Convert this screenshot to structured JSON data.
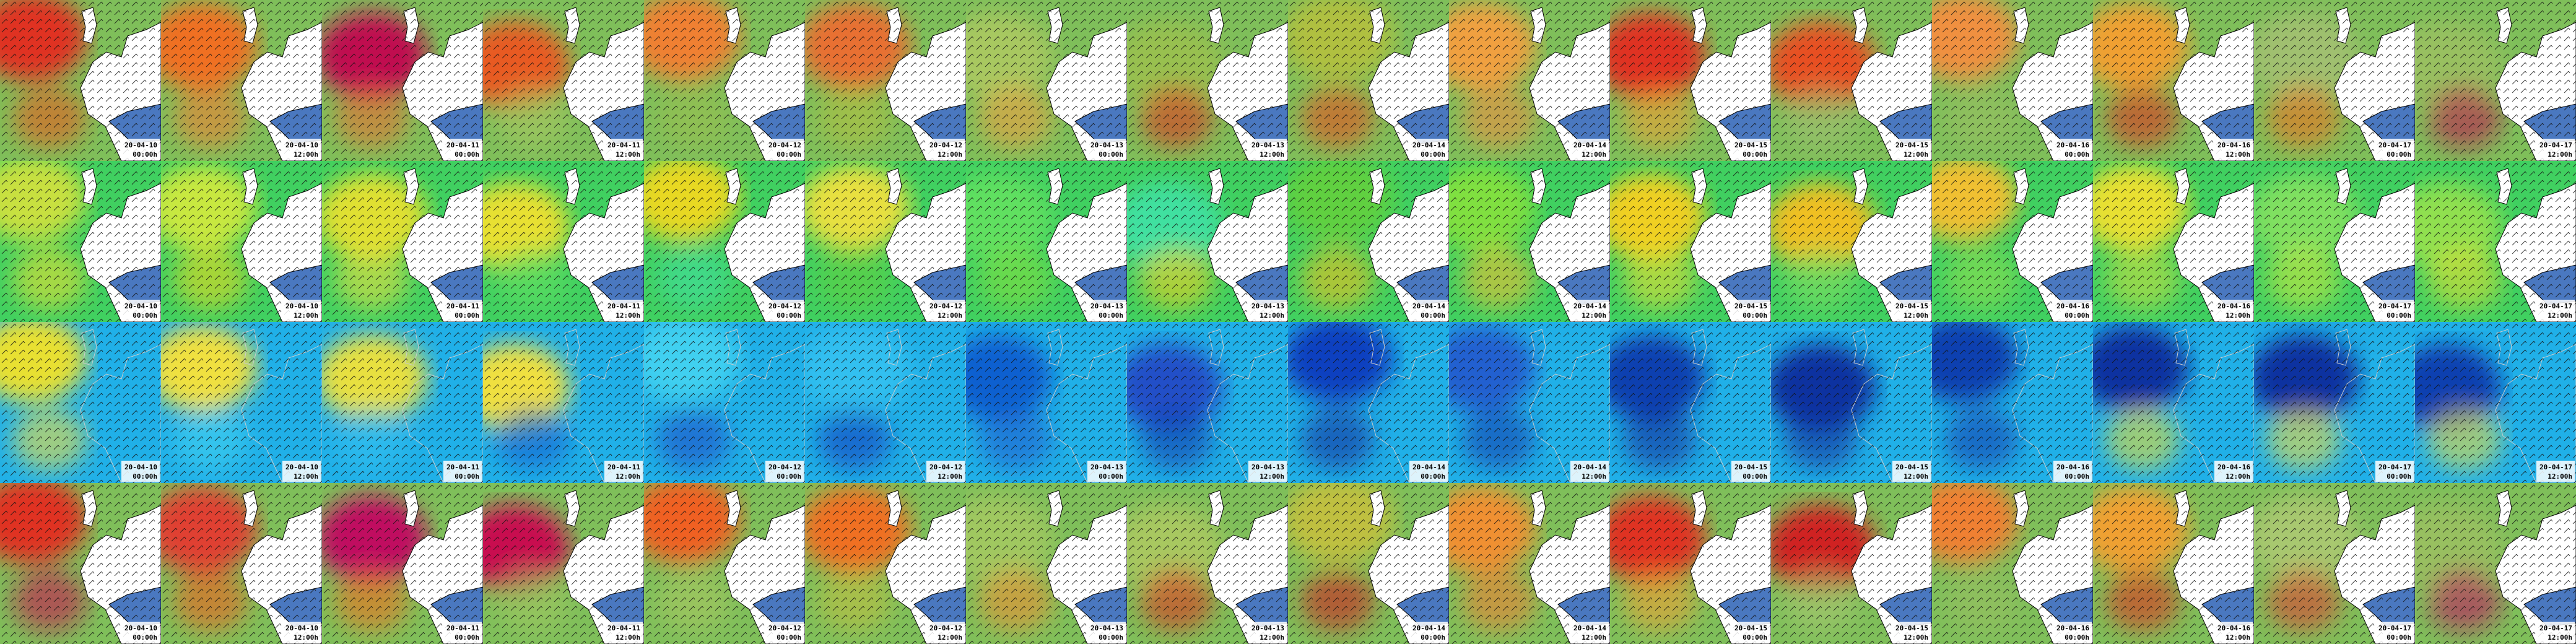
{
  "rows": [
    {
      "tiles": [
        {
          "date": "20-04-10",
          "time": "00:00h"
        },
        {
          "date": "20-04-10",
          "time": "12:00h"
        },
        {
          "date": "20-04-11",
          "time": "00:00h"
        },
        {
          "date": "20-04-11",
          "time": "12:00h"
        },
        {
          "date": "20-04-12",
          "time": "00:00h"
        },
        {
          "date": "20-04-12",
          "time": "12:00h"
        },
        {
          "date": "20-04-13",
          "time": "00:00h"
        },
        {
          "date": "20-04-13",
          "time": "12:00h"
        },
        {
          "date": "20-04-14",
          "time": "00:00h"
        },
        {
          "date": "20-04-14",
          "time": "12:00h"
        },
        {
          "date": "20-04-15",
          "time": "00:00h"
        },
        {
          "date": "20-04-15",
          "time": "12:00h"
        },
        {
          "date": "20-04-16",
          "time": "00:00h"
        },
        {
          "date": "20-04-16",
          "time": "12:00h"
        },
        {
          "date": "20-04-17",
          "time": "00:00h"
        },
        {
          "date": "20-04-17",
          "time": "12:00h"
        }
      ]
    },
    {
      "tiles": [
        {
          "date": "20-04-10",
          "time": "00:00h"
        },
        {
          "date": "20-04-10",
          "time": "12:00h"
        },
        {
          "date": "20-04-11",
          "time": "00:00h"
        },
        {
          "date": "20-04-11",
          "time": "12:00h"
        },
        {
          "date": "20-04-12",
          "time": "00:00h"
        },
        {
          "date": "20-04-12",
          "time": "12:00h"
        },
        {
          "date": "20-04-13",
          "time": "00:00h"
        },
        {
          "date": "20-04-13",
          "time": "12:00h"
        },
        {
          "date": "20-04-14",
          "time": "00:00h"
        },
        {
          "date": "20-04-14",
          "time": "12:00h"
        },
        {
          "date": "20-04-15",
          "time": "00:00h"
        },
        {
          "date": "20-04-15",
          "time": "12:00h"
        },
        {
          "date": "20-04-16",
          "time": "00:00h"
        },
        {
          "date": "20-04-16",
          "time": "12:00h"
        },
        {
          "date": "20-04-17",
          "time": "00:00h"
        },
        {
          "date": "20-04-17",
          "time": "12:00h"
        }
      ]
    },
    {
      "tiles": [
        {
          "date": "20-04-10",
          "time": "00:00h"
        },
        {
          "date": "20-04-10",
          "time": "12:00h"
        },
        {
          "date": "20-04-11",
          "time": "00:00h"
        },
        {
          "date": "20-04-11",
          "time": "12:00h"
        },
        {
          "date": "20-04-12",
          "time": "00:00h"
        },
        {
          "date": "20-04-12",
          "time": "12:00h"
        },
        {
          "date": "20-04-13",
          "time": "00:00h"
        },
        {
          "date": "20-04-13",
          "time": "12:00h"
        },
        {
          "date": "20-04-14",
          "time": "00:00h"
        },
        {
          "date": "20-04-14",
          "time": "12:00h"
        },
        {
          "date": "20-04-15",
          "time": "00:00h"
        },
        {
          "date": "20-04-15",
          "time": "12:00h"
        },
        {
          "date": "20-04-16",
          "time": "00:00h"
        },
        {
          "date": "20-04-16",
          "time": "12:00h"
        },
        {
          "date": "20-04-17",
          "time": "00:00h"
        },
        {
          "date": "20-04-17",
          "time": "12:00h"
        }
      ]
    },
    {
      "tiles": [
        {
          "date": "20-04-10",
          "time": "00:00h"
        },
        {
          "date": "20-04-10",
          "time": "12:00h"
        },
        {
          "date": "20-04-11",
          "time": "00:00h"
        },
        {
          "date": "20-04-11",
          "time": "12:00h"
        },
        {
          "date": "20-04-12",
          "time": "00:00h"
        },
        {
          "date": "20-04-12",
          "time": "12:00h"
        },
        {
          "date": "20-04-13",
          "time": "00:00h"
        },
        {
          "date": "20-04-13",
          "time": "12:00h"
        },
        {
          "date": "20-04-14",
          "time": "00:00h"
        },
        {
          "date": "20-04-14",
          "time": "12:00h"
        },
        {
          "date": "20-04-15",
          "time": "00:00h"
        },
        {
          "date": "20-04-15",
          "time": "12:00h"
        },
        {
          "date": "20-04-16",
          "time": "00:00h"
        },
        {
          "date": "20-04-16",
          "time": "12:00h"
        },
        {
          "date": "20-04-17",
          "time": "00:00h"
        },
        {
          "date": "20-04-17",
          "time": "12:00h"
        }
      ]
    }
  ]
}
